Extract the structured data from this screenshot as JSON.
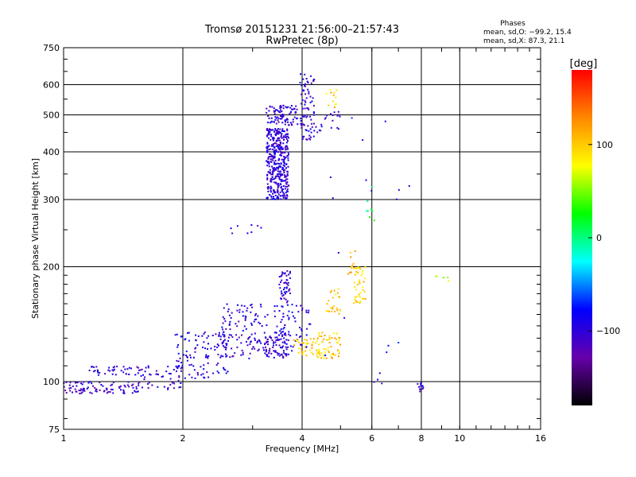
{
  "chart_data": {
    "type": "scatter",
    "title": "Tromsø 20151231 21:56:00–21:57:43",
    "subtitle": "RwPretec (8p)",
    "xlabel": "Frequency [MHz]",
    "ylabel": "Stationary phase Virtual Height [km]",
    "x_scale": "log",
    "y_scale": "log",
    "xlim": [
      1,
      16
    ],
    "ylim": [
      75,
      750
    ],
    "x_ticks": [
      1,
      2,
      4,
      6,
      8,
      10,
      16
    ],
    "x_tick_labels": [
      "1",
      "2",
      "4",
      "6",
      "8",
      "10",
      "16"
    ],
    "y_ticks": [
      75,
      100,
      200,
      300,
      400,
      500,
      600,
      750
    ],
    "y_tick_labels": [
      "75",
      "100",
      "200",
      "300",
      "400",
      "500",
      "600",
      "750"
    ],
    "grid": true,
    "stats": {
      "heading": "Phases",
      "line_o": "mean, sd,O: −99.2, 15.4",
      "line_x": "mean, sd,X:  87.3, 21.1"
    },
    "colorbar": {
      "label": "[deg]",
      "range": [
        -180,
        180
      ],
      "ticks": [
        100,
        0,
        -100
      ],
      "tick_labels": [
        "100",
        "0",
        "−100"
      ],
      "colors": [
        "#ff0000",
        "#ff8800",
        "#ffff00",
        "#00ff00",
        "#00ffff",
        "#0000ff",
        "#6600aa",
        "#000000"
      ]
    },
    "regions": [
      {
        "fmin": 1.0,
        "fmax": 1.55,
        "hmin": 93,
        "hmax": 100,
        "phase": -105,
        "n": 90
      },
      {
        "fmin": 1.15,
        "fmax": 1.75,
        "hmin": 104,
        "hmax": 110,
        "phase": -100,
        "n": 50
      },
      {
        "fmin": 1.55,
        "fmax": 2.0,
        "hmin": 95,
        "hmax": 110,
        "phase": -100,
        "n": 40
      },
      {
        "fmin": 1.9,
        "fmax": 2.6,
        "hmin": 102,
        "hmax": 135,
        "phase": -95,
        "n": 110
      },
      {
        "fmin": 2.5,
        "fmax": 3.3,
        "hmin": 115,
        "hmax": 160,
        "phase": -100,
        "n": 130
      },
      {
        "fmin": 3.2,
        "fmax": 3.7,
        "hmin": 115,
        "hmax": 135,
        "phase": -110,
        "n": 70
      },
      {
        "fmin": 3.4,
        "fmax": 4.2,
        "hmin": 120,
        "hmax": 160,
        "phase": -95,
        "n": 80
      },
      {
        "fmin": 3.5,
        "fmax": 3.75,
        "hmin": 160,
        "hmax": 195,
        "phase": -100,
        "n": 50
      },
      {
        "fmin": 3.25,
        "fmax": 3.7,
        "hmin": 300,
        "hmax": 460,
        "phase": -100,
        "n": 420
      },
      {
        "fmin": 3.25,
        "fmax": 3.9,
        "hmin": 470,
        "hmax": 530,
        "phase": -100,
        "n": 90
      },
      {
        "fmin": 3.95,
        "fmax": 4.3,
        "hmin": 430,
        "hmax": 640,
        "phase": -100,
        "n": 80
      },
      {
        "fmin": 4.3,
        "fmax": 5.0,
        "hmin": 450,
        "hmax": 510,
        "phase": -105,
        "n": 20
      },
      {
        "fmin": 3.8,
        "fmax": 4.4,
        "hmin": 115,
        "hmax": 130,
        "phase": 100,
        "n": 40
      },
      {
        "fmin": 4.4,
        "fmax": 5.0,
        "hmin": 115,
        "hmax": 135,
        "phase": 100,
        "n": 60
      },
      {
        "fmin": 4.6,
        "fmax": 5.0,
        "hmin": 150,
        "hmax": 175,
        "phase": 95,
        "n": 25
      },
      {
        "fmin": 5.4,
        "fmax": 5.8,
        "hmin": 160,
        "hmax": 200,
        "phase": 95,
        "n": 45
      },
      {
        "fmin": 5.2,
        "fmax": 5.5,
        "hmin": 185,
        "hmax": 220,
        "phase": 110,
        "n": 12
      },
      {
        "fmin": 4.6,
        "fmax": 4.9,
        "hmin": 520,
        "hmax": 590,
        "phase": 100,
        "n": 12
      },
      {
        "fmin": 7.8,
        "fmax": 8.1,
        "hmin": 93,
        "hmax": 100,
        "phase": -100,
        "n": 12
      },
      {
        "fmin": 2.6,
        "fmax": 3.3,
        "hmin": 240,
        "hmax": 260,
        "phase": -100,
        "n": 8
      },
      {
        "fmin": 4.5,
        "fmax": 7.5,
        "hmin": 95,
        "hmax": 500,
        "phase": -90,
        "n": 20
      },
      {
        "fmin": 5.8,
        "fmax": 6.2,
        "hmin": 260,
        "hmax": 330,
        "phase": 10,
        "n": 8
      },
      {
        "fmin": 8.5,
        "fmax": 9.8,
        "hmin": 180,
        "hmax": 190,
        "phase": 60,
        "n": 5
      }
    ]
  }
}
